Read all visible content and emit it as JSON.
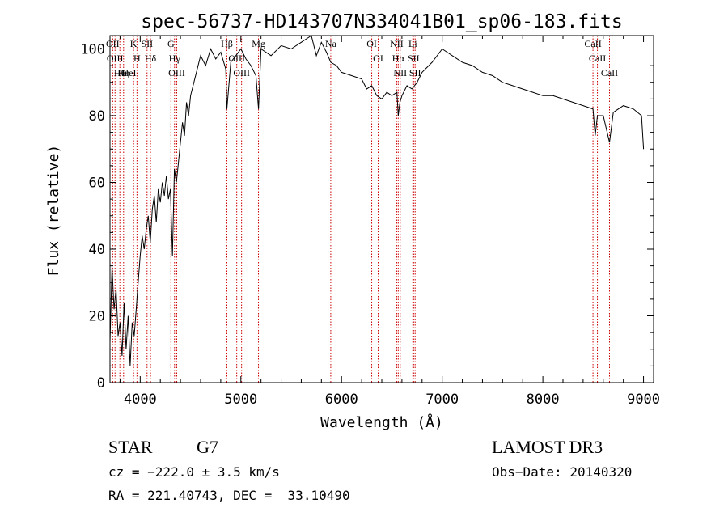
{
  "chart_data": {
    "type": "line",
    "title": "spec-56737-HD143707N334041B01_sp06-183.fits",
    "xlabel": "Wavelength (Å)",
    "ylabel": "Flux (relative)",
    "xlim": [
      3700,
      9100
    ],
    "ylim": [
      0,
      104
    ],
    "x_ticks": [
      4000,
      5000,
      6000,
      7000,
      8000,
      9000
    ],
    "y_ticks": [
      0,
      20,
      40,
      60,
      80,
      100
    ],
    "grid": false,
    "line_color": "#000000",
    "marker_color": "#cc0000",
    "series": [
      {
        "x": [
          3700,
          3720,
          3740,
          3760,
          3780,
          3800,
          3820,
          3840,
          3860,
          3880,
          3900,
          3920,
          3940,
          3960,
          3980,
          4000,
          4020,
          4040,
          4060,
          4080,
          4100,
          4120,
          4140,
          4160,
          4180,
          4200,
          4220,
          4240,
          4260,
          4280,
          4300,
          4320,
          4340,
          4360,
          4380,
          4400,
          4420,
          4440,
          4460,
          4480,
          4500,
          4550,
          4600,
          4650,
          4700,
          4750,
          4800,
          4850,
          4861,
          4900,
          4950,
          5000,
          5050,
          5100,
          5150,
          5175,
          5200,
          5300,
          5400,
          5500,
          5600,
          5700,
          5750,
          5800,
          5850,
          5893,
          5950,
          6000,
          6100,
          6200,
          6250,
          6300,
          6350,
          6400,
          6450,
          6500,
          6550,
          6563,
          6580,
          6600,
          6650,
          6700,
          6750,
          6800,
          6900,
          7000,
          7100,
          7200,
          7300,
          7400,
          7500,
          7600,
          7700,
          7800,
          7900,
          8000,
          8100,
          8200,
          8300,
          8400,
          8498,
          8520,
          8542,
          8600,
          8662,
          8700,
          8800,
          8900,
          8980,
          9000
        ],
        "y": [
          12,
          35,
          22,
          28,
          14,
          18,
          8,
          24,
          10,
          20,
          5,
          18,
          14,
          22,
          30,
          38,
          44,
          40,
          46,
          50,
          42,
          52,
          56,
          48,
          58,
          54,
          60,
          56,
          62,
          55,
          58,
          38,
          64,
          60,
          66,
          72,
          78,
          74,
          84,
          80,
          86,
          92,
          98,
          95,
          100,
          97,
          99,
          94,
          82,
          96,
          98,
          100,
          97,
          95,
          92,
          82,
          100,
          98,
          101,
          100,
          102,
          104,
          98,
          102,
          99,
          96,
          95,
          93,
          92,
          91,
          88,
          89,
          86,
          85,
          87,
          86,
          87,
          80,
          84,
          86,
          89,
          88,
          90,
          93,
          96,
          100,
          98,
          96,
          95,
          93,
          92,
          90,
          89,
          88,
          87,
          86,
          86,
          85,
          84,
          83,
          82,
          74,
          80,
          80,
          72,
          81,
          83,
          82,
          80,
          70
        ]
      }
    ],
    "lines": [
      {
        "name": "Hθ",
        "x": 3798
      },
      {
        "name": "OII",
        "x": 3727
      },
      {
        "name": "OIII",
        "x": 3750
      },
      {
        "name": "K",
        "x": 3934
      },
      {
        "name": "HeI",
        "x": 3889
      },
      {
        "name": "Hη",
        "x": 3835
      },
      {
        "name": "H",
        "x": 3968
      },
      {
        "name": "SII",
        "x": 4068
      },
      {
        "name": "Hδ",
        "x": 4102
      },
      {
        "name": "OIII",
        "x": 4363
      },
      {
        "name": "Hγ",
        "x": 4341
      },
      {
        "name": "G",
        "x": 4305
      },
      {
        "name": "Hβ",
        "x": 4861
      },
      {
        "name": "OIII",
        "x": 4959
      },
      {
        "name": "OIII",
        "x": 5007
      },
      {
        "name": "Mg",
        "x": 5175
      },
      {
        "name": "Na",
        "x": 5893
      },
      {
        "name": "OI",
        "x": 6300
      },
      {
        "name": "OI",
        "x": 6364
      },
      {
        "name": "NII",
        "x": 6548
      },
      {
        "name": "Hα",
        "x": 6563
      },
      {
        "name": "NII",
        "x": 6583
      },
      {
        "name": "Li",
        "x": 6708
      },
      {
        "name": "SII",
        "x": 6716
      },
      {
        "name": "SII",
        "x": 6731
      },
      {
        "name": "CaII",
        "x": 8498
      },
      {
        "name": "CaII",
        "x": 8542
      },
      {
        "name": "CaII",
        "x": 8662
      }
    ]
  },
  "info": {
    "object_class": "STAR",
    "subclass": "G7",
    "survey": "LAMOST DR3",
    "redshift": "cz = −222.0 ± 3.5 km/s",
    "obs_date": "Obs−Date: 20140320",
    "coords": "RA = 221.40743, DEC =  33.10490"
  }
}
